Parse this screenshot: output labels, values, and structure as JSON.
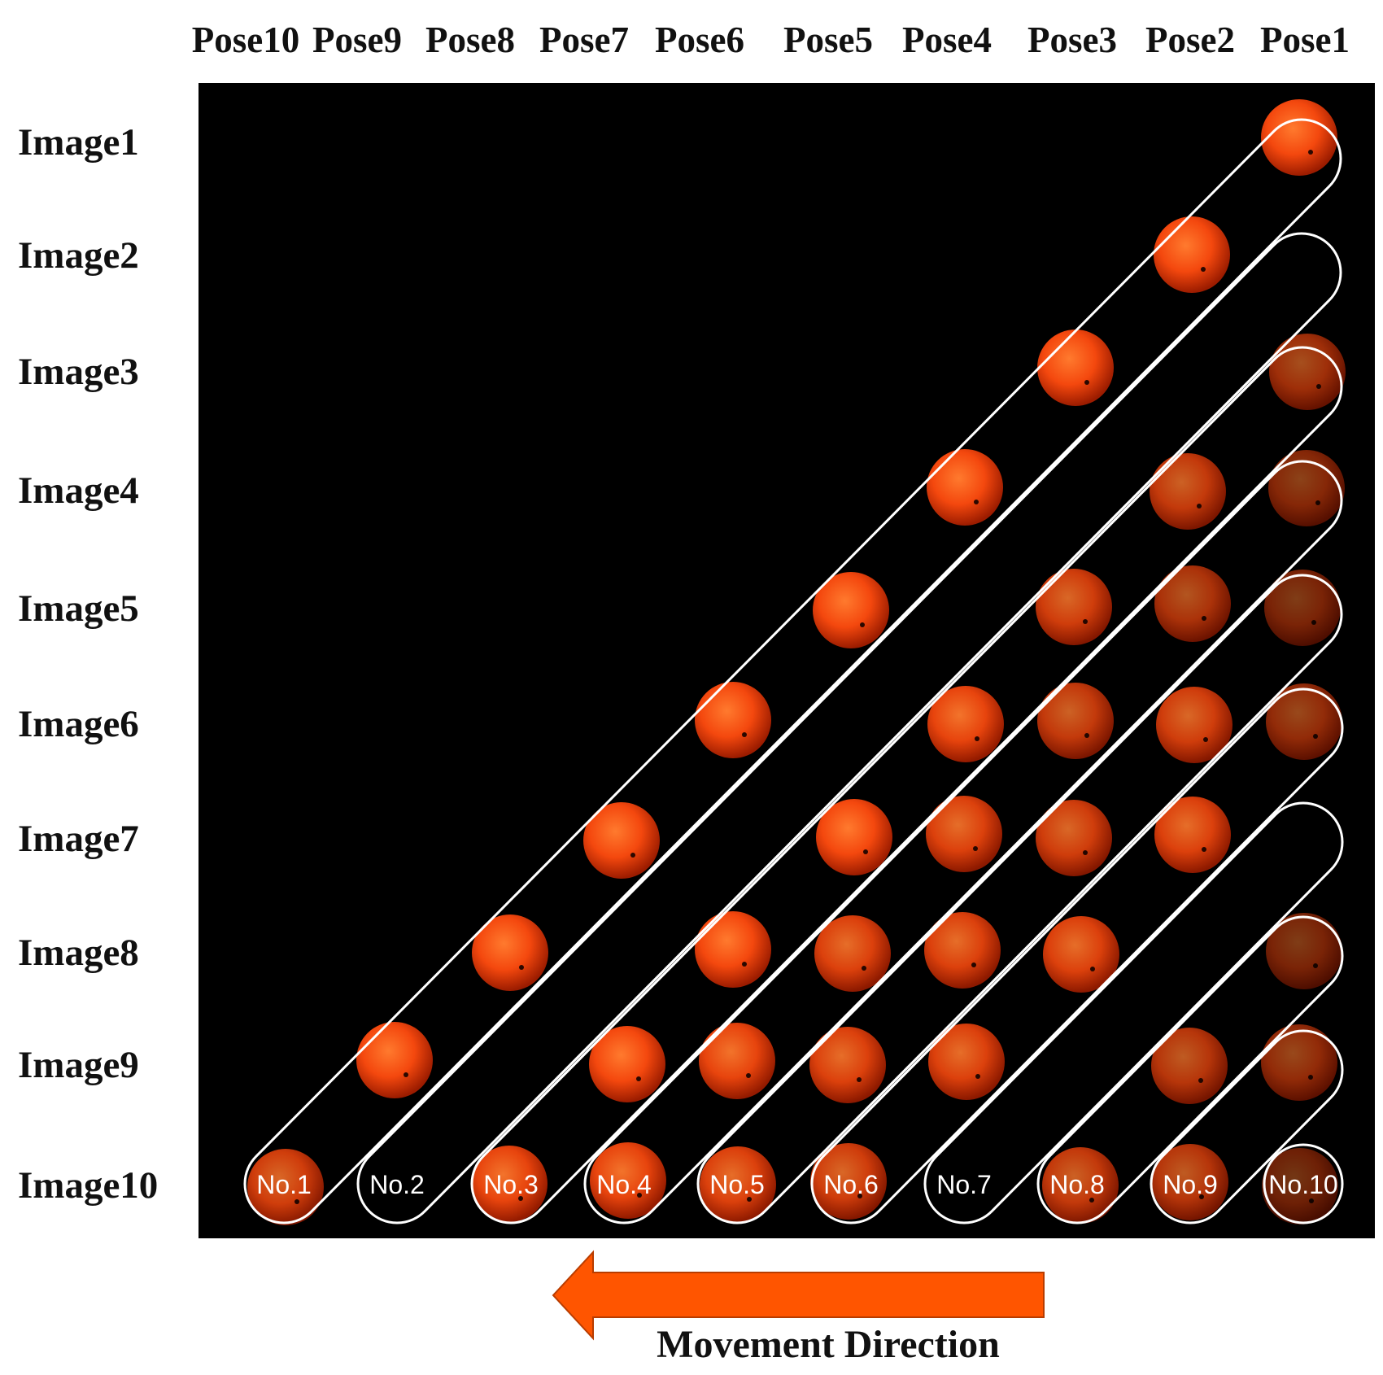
{
  "columns": [
    "Pose10",
    "Pose9",
    "Pose8",
    "Pose7",
    "Pose6",
    "Pose5",
    "Pose4",
    "Pose3",
    "Pose2",
    "Pose1"
  ],
  "rows": [
    "Image1",
    "Image2",
    "Image3",
    "Image4",
    "Image5",
    "Image6",
    "Image7",
    "Image8",
    "Image9",
    "Image10"
  ],
  "tracks": [
    {
      "label": "No.1"
    },
    {
      "label": "No.2"
    },
    {
      "label": "No.3"
    },
    {
      "label": "No.4"
    },
    {
      "label": "No.5"
    },
    {
      "label": "No.6"
    },
    {
      "label": "No.7"
    },
    {
      "label": "No.8"
    },
    {
      "label": "No.9"
    },
    {
      "label": "No.10"
    }
  ],
  "fruit_color": "#ff5a12",
  "arrow": {
    "label": "Movement Direction",
    "color": "#ff5500",
    "direction": "left"
  },
  "panel_color": "#000000",
  "track_outline_color": "#ffffff"
}
